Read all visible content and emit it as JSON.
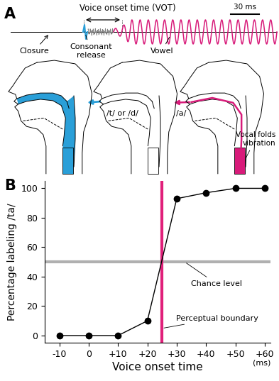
{
  "panel_a": {
    "label": "A",
    "vot_label": "Voice onset time (VOT)",
    "scale_bar": "30 ms",
    "closure": "Closure",
    "release": "Consonant\nrelease",
    "vowel": "Vowel",
    "consonant": "/t/ or /d/",
    "vowel_sound": "/a/",
    "vocal_folds": "Vocal folds\nvibration"
  },
  "chart_data": {
    "type": "line",
    "panel_label": "B",
    "x": [
      -10,
      0,
      10,
      20,
      30,
      40,
      50,
      60
    ],
    "values": [
      0,
      0,
      0,
      10,
      93,
      97,
      100,
      100
    ],
    "color": "#000000",
    "marker": "o",
    "x_label": "Voice onset time",
    "x_unit": "(ms)",
    "y_label": "Percentage labeling /ta/",
    "xlim": [
      -15,
      62
    ],
    "ylim": [
      -5,
      105
    ],
    "xticks": [
      -10,
      0,
      {
        "value": 10,
        "label": "+10"
      },
      {
        "value": 20,
        "label": "+20"
      },
      {
        "value": 30,
        "label": "+30"
      },
      {
        "value": 40,
        "label": "+40"
      },
      {
        "value": 50,
        "label": "+50"
      },
      {
        "value": 60,
        "label": "+60"
      }
    ],
    "yticks": [
      0,
      20,
      40,
      60,
      80,
      100
    ],
    "annotations": [
      {
        "text": "Chance level",
        "y": 50,
        "color": "#b0b0b0"
      },
      {
        "text": "Perceptual boundary",
        "x": 25,
        "color": "#e0207a"
      }
    ]
  }
}
